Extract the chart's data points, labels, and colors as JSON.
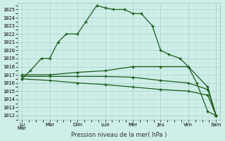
{
  "background_color": "#ceeee8",
  "grid_color_major": "#aacccc",
  "grid_color_minor": "#c0ddd8",
  "line_color": "#1a5c1a",
  "ylim": [
    1011.5,
    1025.8
  ],
  "yticks": [
    1012,
    1013,
    1014,
    1015,
    1016,
    1017,
    1018,
    1019,
    1020,
    1021,
    1022,
    1023,
    1024,
    1025
  ],
  "xlabel": "Pression niveau de la mer( hPa )",
  "xlim": [
    -0.15,
    7.15
  ],
  "xtick_positions": [
    0.0,
    1.0,
    2.0,
    3.0,
    4.0,
    5.0,
    6.0,
    7.0
  ],
  "xtick_labels": [
    "Lu\nMar",
    "Mar",
    "Dim",
    "Lun",
    "Mer",
    "Jeu",
    "Ven",
    "Sam"
  ],
  "series": [
    {
      "x": [
        0.0,
        0.3,
        0.7,
        1.0,
        1.3,
        1.6,
        2.0,
        2.3,
        2.7,
        3.0,
        3.3,
        3.7,
        4.0,
        4.3,
        4.7,
        5.0,
        5.3,
        5.7,
        6.0,
        6.3,
        6.7,
        7.0
      ],
      "y": [
        1016.5,
        1017.5,
        1019.0,
        1019.0,
        1021.0,
        1022.0,
        1022.0,
        1023.5,
        1025.5,
        1025.2,
        1025.0,
        1025.0,
        1024.5,
        1024.5,
        1023.0,
        1020.0,
        1019.5,
        1019.0,
        1018.0,
        1016.0,
        1012.5,
        1012.0
      ]
    },
    {
      "x": [
        0.0,
        1.0,
        2.0,
        3.0,
        4.0,
        5.0,
        6.0,
        6.7,
        7.0
      ],
      "y": [
        1017.0,
        1017.0,
        1017.3,
        1017.5,
        1018.0,
        1018.0,
        1018.0,
        1015.5,
        1012.0
      ]
    },
    {
      "x": [
        0.0,
        1.0,
        2.0,
        3.0,
        4.0,
        5.0,
        6.0,
        6.7,
        7.0
      ],
      "y": [
        1016.8,
        1016.8,
        1016.8,
        1016.8,
        1016.7,
        1016.3,
        1016.0,
        1015.2,
        1012.0
      ]
    },
    {
      "x": [
        0.0,
        1.0,
        2.0,
        3.0,
        4.0,
        5.0,
        6.0,
        6.7,
        7.0
      ],
      "y": [
        1016.5,
        1016.3,
        1016.0,
        1015.8,
        1015.5,
        1015.2,
        1015.0,
        1014.5,
        1012.0
      ]
    }
  ]
}
